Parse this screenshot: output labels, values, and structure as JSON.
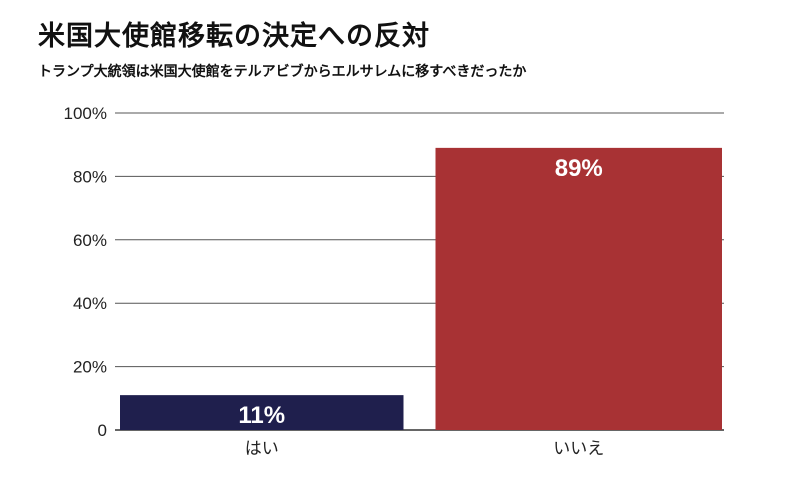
{
  "chart_data": {
    "type": "bar",
    "title": "米国大使館移転の決定への反対",
    "subtitle": "トランプ大統領は米国大使館をテルアビブからエルサレムに移すべきだったか",
    "categories": [
      "はい",
      "いいえ"
    ],
    "values": [
      11,
      89
    ],
    "data_labels": [
      "11%",
      "89%"
    ],
    "colors": [
      "#1f1f4d",
      "#a83234"
    ],
    "ylim": [
      0,
      100
    ],
    "yticks": [
      0,
      20,
      40,
      60,
      80,
      100
    ],
    "ytick_labels": [
      "0",
      "20%",
      "40%",
      "60%",
      "80%",
      "100%"
    ],
    "grid": true
  }
}
